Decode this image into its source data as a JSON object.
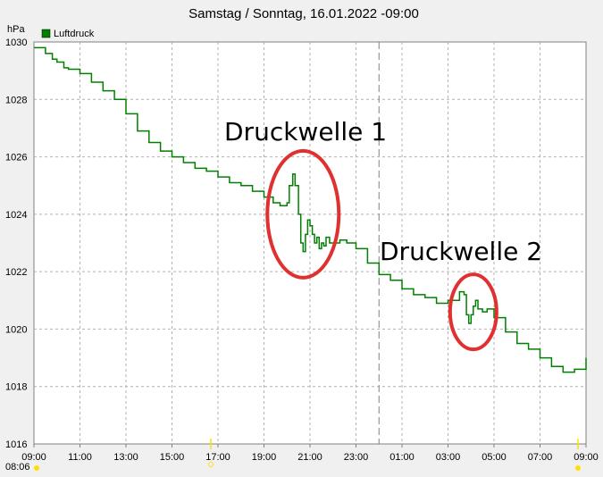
{
  "chart_data": {
    "type": "line",
    "title": "Samstag / Sonntag, 16.01.2022  -09:00",
    "ylabel": "hPa",
    "xlabel": "",
    "legend": {
      "placement": "top-left",
      "entries": [
        "Luftdruck"
      ]
    },
    "ylim": [
      1016,
      1030
    ],
    "yticks": [
      1016,
      1018,
      1020,
      1022,
      1024,
      1026,
      1028,
      1030
    ],
    "xlim_hours": [
      9,
      33
    ],
    "xticks": [
      "09:00",
      "11:00",
      "13:00",
      "15:00",
      "17:00",
      "19:00",
      "21:00",
      "23:00",
      "01:00",
      "03:00",
      "05:00",
      "07:00",
      "09:00"
    ],
    "start_time_label": "08:06",
    "midnight_marker_hours": 24,
    "grid": true,
    "series": [
      {
        "name": "Luftdruck",
        "color": "#008000",
        "x_hours": [
          9.0,
          9.2,
          9.5,
          9.8,
          10.0,
          10.3,
          10.5,
          11.0,
          11.5,
          12.0,
          12.5,
          13.0,
          13.5,
          14.0,
          14.5,
          15.0,
          15.5,
          16.0,
          16.5,
          17.0,
          17.5,
          18.0,
          18.5,
          19.0,
          19.4,
          19.7,
          20.0,
          20.1,
          20.25,
          20.35,
          20.5,
          20.6,
          20.7,
          20.8,
          20.9,
          21.0,
          21.1,
          21.2,
          21.3,
          21.4,
          21.5,
          21.6,
          21.7,
          21.85,
          22.0,
          22.3,
          22.6,
          23.0,
          23.5,
          24.0,
          24.5,
          25.0,
          25.5,
          26.0,
          26.5,
          27.0,
          27.5,
          27.7,
          27.8,
          27.9,
          28.0,
          28.1,
          28.2,
          28.3,
          28.5,
          28.7,
          29.0,
          29.5,
          30.0,
          30.5,
          31.0,
          31.5,
          32.0,
          32.5,
          33.0
        ],
        "values": [
          1029.8,
          1029.8,
          1029.6,
          1029.4,
          1029.3,
          1029.1,
          1029.05,
          1028.9,
          1028.6,
          1028.3,
          1028.0,
          1027.5,
          1026.9,
          1026.5,
          1026.2,
          1026.0,
          1025.8,
          1025.6,
          1025.5,
          1025.3,
          1025.1,
          1025.0,
          1024.8,
          1024.6,
          1024.4,
          1024.3,
          1024.4,
          1025.0,
          1025.4,
          1025.0,
          1024.0,
          1023.0,
          1022.7,
          1023.3,
          1023.8,
          1023.6,
          1023.3,
          1023.0,
          1023.2,
          1022.8,
          1023.0,
          1022.9,
          1023.2,
          1023.0,
          1023.0,
          1023.1,
          1023.0,
          1022.8,
          1022.3,
          1021.9,
          1021.7,
          1021.4,
          1021.2,
          1021.1,
          1020.9,
          1021.0,
          1021.3,
          1021.2,
          1020.5,
          1020.2,
          1020.5,
          1020.8,
          1021.0,
          1020.7,
          1020.6,
          1020.7,
          1020.4,
          1019.9,
          1019.5,
          1019.3,
          1019.0,
          1018.7,
          1018.5,
          1018.6,
          1019.0
        ]
      }
    ],
    "annotations": [
      {
        "text": "Druckwelle 1",
        "x_hours": 20.7,
        "y": 1024.0,
        "shape": "ellipse",
        "color": "#e03030"
      },
      {
        "text": "Druckwelle 2",
        "x_hours": 28.1,
        "y": 1020.6,
        "shape": "ellipse",
        "color": "#e03030"
      }
    ]
  }
}
